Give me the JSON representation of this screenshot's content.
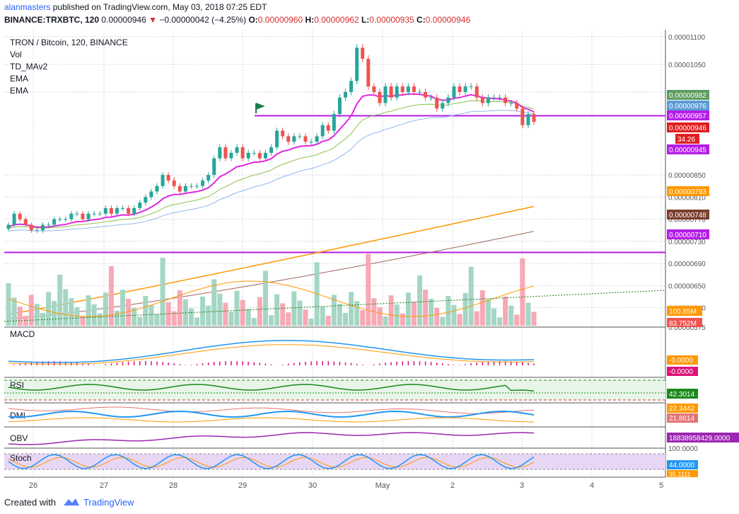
{
  "header": {
    "author": "alanmasters",
    "published_text": "published on TradingView.com, May 03, 2018 07:25 EDT",
    "symbol": "BINANCE:TRXBTC, 120",
    "last": "0.00000946",
    "change": "−0.00000042 (−4.25%)",
    "o_label": "O:",
    "o_value": "0.00000960",
    "h_label": "H:",
    "h_value": "0.00000962",
    "l_label": "L:",
    "l_value": "0.00000935",
    "c_label": "C:",
    "c_value": "0.00000946"
  },
  "legend": [
    "TRON / Bitcoin, 120, BINANCE",
    "Vol",
    "TD_MAv2",
    "EMA",
    "EMA"
  ],
  "panes": {
    "macd": "MACD",
    "rsi": "RSI",
    "dmi": "DMI",
    "obv": "OBV",
    "stoch": "Stoch"
  },
  "footer": {
    "created_with": "Created with",
    "brand": "TradingView"
  },
  "colors": {
    "up": "#26a69a",
    "down": "#ef5350",
    "vol_up": "#a5d6c4",
    "vol_down": "#f7a9b5",
    "ema_fast": "#e027e0",
    "ema_mid": "#ff9800",
    "ema_slow": "#a1665e",
    "sma_green": "#8bc34a",
    "sma_blue": "#90b8e8",
    "hline": "#b41ee6",
    "macd": "#2196f3",
    "signal": "#ff9800",
    "rsi": "#1b8a1b",
    "obv": "#9c27b0",
    "stoch_k": "#2196f3",
    "stoch_d": "#ff9800"
  },
  "chart_data": {
    "type": "candlestick",
    "title": "TRON / Bitcoin, 120, BINANCE",
    "x_ticks": [
      "26",
      "27",
      "28",
      "29",
      "30",
      "May",
      "2",
      "3",
      "4",
      "5"
    ],
    "y_ticks": [
      "0.00001100",
      "0.00001050",
      "0.00001000",
      "0.00000850",
      "0.00000810",
      "0.00000770",
      "0.00000730",
      "0.00000690",
      "0.00000650",
      "0.00000610",
      "0.00000575"
    ],
    "ylim": [
      5.8e-06,
      1.11e-05
    ],
    "close": [
      7.6e-06,
      7.8e-06,
      7.7e-06,
      7.6e-06,
      7.5e-06,
      7.5e-06,
      7.6e-06,
      7.6e-06,
      7.7e-06,
      7.7e-06,
      7.7e-06,
      7.8e-06,
      7.8e-06,
      7.7e-06,
      7.8e-06,
      7.8e-06,
      7.8e-06,
      7.9e-06,
      7.8e-06,
      7.9e-06,
      7.9e-06,
      7.8e-06,
      7.9e-06,
      8e-06,
      8.1e-06,
      8.2e-06,
      8.3e-06,
      8.5e-06,
      8.4e-06,
      8.3e-06,
      8.2e-06,
      8.3e-06,
      8.3e-06,
      8.3e-06,
      8.4e-06,
      8.5e-06,
      8.8e-06,
      9e-06,
      8.8e-06,
      8.9e-06,
      9e-06,
      8.8e-06,
      8.9e-06,
      8.9e-06,
      8.8e-06,
      8.9e-06,
      9e-06,
      9.3e-06,
      9.2e-06,
      9.1e-06,
      9.2e-06,
      9.2e-06,
      9.1e-06,
      9.1e-06,
      9.2e-06,
      9.4e-06,
      9.3e-06,
      9.6e-06,
      9.9e-06,
      1e-05,
      1.02e-05,
      1.08e-05,
      1.06e-05,
      1.01e-05,
      1e-05,
      9.8e-06,
      1.01e-05,
      9.9e-06,
      1.01e-05,
      1e-05,
      1.01e-05,
      1e-05,
      1e-05,
      9.9e-06,
      9.9e-06,
      9.7e-06,
      9.8e-06,
      9.9e-06,
      1.01e-05,
      1e-05,
      1.01e-05,
      1.01e-05,
      9.9e-06,
      9.8e-06,
      9.9e-06,
      9.9e-06,
      9.9e-06,
      9.8e-06,
      9.8e-06,
      9.7e-06,
      9.4e-06,
      9.6e-06,
      9.46e-06
    ],
    "series": [
      {
        "name": "Vol",
        "last": "100.85M"
      },
      {
        "name": "Vol MA",
        "last": "83.752M"
      },
      {
        "name": "EMA",
        "last": "0.00000957"
      },
      {
        "name": "EMA",
        "last": "0.00000793"
      },
      {
        "name": "EMA",
        "last": "0.00000748"
      },
      {
        "name": "MA",
        "last": "0.00000982"
      },
      {
        "name": "MA",
        "last": "0.00000976"
      },
      {
        "name": "Level",
        "last": "0.00000945"
      },
      {
        "name": "Level",
        "last": "0.00000710"
      },
      {
        "name": "MACD",
        "last": "-0.0000"
      },
      {
        "name": "Signal",
        "last": "-0.0000"
      },
      {
        "name": "RSI",
        "last": "42.3014"
      },
      {
        "name": "DMI +",
        "last": "22.3442"
      },
      {
        "name": "DMI -",
        "last": "21.8614"
      },
      {
        "name": "OBV",
        "last": "18838958429.0000"
      },
      {
        "name": "Stoch %K",
        "last": "44.0000"
      },
      {
        "name": "Stoch %D",
        "last": "35.1111"
      }
    ],
    "last_price_labels": [
      {
        "value": "0.00000982",
        "color": "#5d9d62"
      },
      {
        "value": "0.00000976",
        "color": "#5b9bd5"
      },
      {
        "value": "0.00000957",
        "color": "#b41ee6"
      },
      {
        "value": "0.00000946",
        "color": "#e02020"
      },
      {
        "value": "34.26",
        "color": "#e02020"
      },
      {
        "value": "0.00000945",
        "color": "#b41ee6"
      },
      {
        "value": "0.00000793",
        "color": "#ff9800"
      },
      {
        "value": "0.00000748",
        "color": "#7b3f2e"
      },
      {
        "value": "0.00000710",
        "color": "#b41ee6"
      }
    ],
    "pane_labels": {
      "vol": [
        "100.85M",
        "83.752M"
      ],
      "macd": [
        "-0.0000",
        "-0.0000"
      ],
      "rsi": [
        "42.3014"
      ],
      "dmi": [
        "22.3442",
        "21.8614"
      ],
      "obv": [
        "18838958429.0000"
      ],
      "stoch": [
        "100.0000",
        "44.0000",
        "35.1111"
      ]
    }
  }
}
